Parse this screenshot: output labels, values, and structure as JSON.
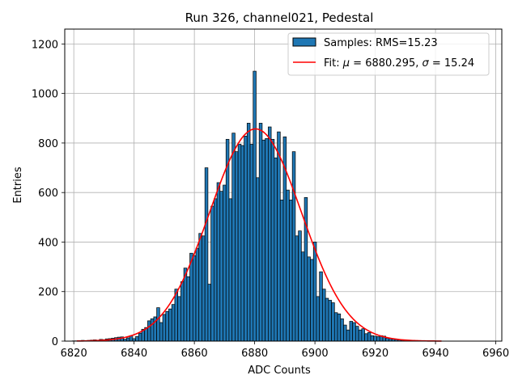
{
  "chart_data": {
    "type": "bar",
    "title": "Run 326, channel021, Pedestal",
    "xlabel": "ADC Counts",
    "ylabel": "Entries",
    "xlim": [
      6817,
      6962
    ],
    "ylim": [
      0,
      1260
    ],
    "xticks": [
      6820,
      6840,
      6860,
      6880,
      6900,
      6920,
      6940,
      6960
    ],
    "yticks": [
      0,
      200,
      400,
      600,
      800,
      1000,
      1200
    ],
    "grid": true,
    "legend_position": "top-right",
    "bar_color": "#1f77b4",
    "fit_color": "#ff0000",
    "series": [
      {
        "name": "Samples: RMS=15.23",
        "kind": "histogram",
        "bin_width": 1,
        "x": [
          6820,
          6821,
          6822,
          6823,
          6824,
          6825,
          6826,
          6827,
          6828,
          6829,
          6830,
          6831,
          6832,
          6833,
          6834,
          6835,
          6836,
          6837,
          6838,
          6839,
          6840,
          6841,
          6842,
          6843,
          6844,
          6845,
          6846,
          6847,
          6848,
          6849,
          6850,
          6851,
          6852,
          6853,
          6854,
          6855,
          6856,
          6857,
          6858,
          6859,
          6860,
          6861,
          6862,
          6863,
          6864,
          6865,
          6866,
          6867,
          6868,
          6869,
          6870,
          6871,
          6872,
          6873,
          6874,
          6875,
          6876,
          6877,
          6878,
          6879,
          6880,
          6881,
          6882,
          6883,
          6884,
          6885,
          6886,
          6887,
          6888,
          6889,
          6890,
          6891,
          6892,
          6893,
          6894,
          6895,
          6896,
          6897,
          6898,
          6899,
          6900,
          6901,
          6902,
          6903,
          6904,
          6905,
          6906,
          6907,
          6908,
          6909,
          6910,
          6911,
          6912,
          6913,
          6914,
          6915,
          6916,
          6917,
          6918,
          6919,
          6920,
          6921,
          6922,
          6923,
          6924,
          6925,
          6926,
          6927,
          6928,
          6929,
          6930,
          6931,
          6932,
          6933,
          6934,
          6935,
          6936,
          6937,
          6938,
          6939,
          6940,
          6941,
          6942
        ],
        "values": [
          1,
          1,
          2,
          3,
          2,
          3,
          4,
          5,
          4,
          7,
          6,
          9,
          10,
          12,
          14,
          16,
          17,
          8,
          13,
          22,
          10,
          19,
          32,
          48,
          55,
          82,
          90,
          98,
          135,
          75,
          108,
          120,
          130,
          148,
          210,
          180,
          240,
          295,
          260,
          355,
          345,
          375,
          435,
          425,
          700,
          230,
          545,
          575,
          640,
          605,
          630,
          815,
          575,
          840,
          765,
          795,
          790,
          828,
          880,
          795,
          1090,
          660,
          880,
          812,
          818,
          865,
          815,
          740,
          845,
          570,
          825,
          610,
          570,
          765,
          425,
          445,
          360,
          580,
          340,
          330,
          400,
          180,
          280,
          210,
          173,
          165,
          155,
          115,
          110,
          90,
          65,
          45,
          80,
          75,
          60,
          45,
          50,
          30,
          35,
          22,
          20,
          18,
          22,
          20,
          12,
          10,
          8,
          6,
          5,
          4,
          3,
          2,
          2,
          1,
          1,
          1,
          1,
          0,
          0,
          0,
          0,
          0,
          0
        ]
      },
      {
        "name": "Fit: μ = 6880.295, σ = 15.24",
        "kind": "gaussian",
        "mu": 6880.295,
        "sigma": 15.24,
        "amplitude": 857,
        "x_range": [
          6821,
          6942
        ]
      }
    ],
    "legend": {
      "samples_label": "Samples: RMS=15.23",
      "fit_label_prefix": "Fit: ",
      "fit_mu_symbol": "μ",
      "fit_mu_text": " = 6880.295, ",
      "fit_sigma_symbol": "σ",
      "fit_sigma_text": " = 15.24"
    }
  }
}
